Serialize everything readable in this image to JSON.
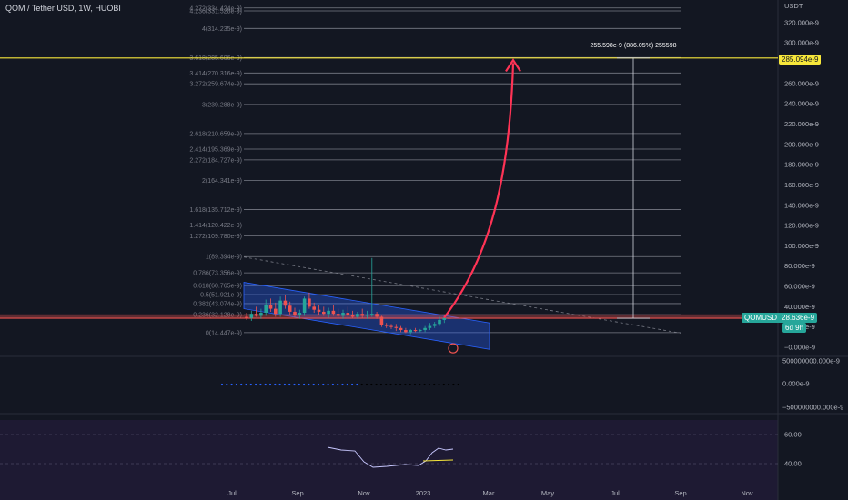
{
  "header": {
    "title": "QOM / Tether USD, 1W, HUOBI"
  },
  "price_axis": {
    "unit": "USDT",
    "ticks": [
      "320.000e-9",
      "300.000e-9",
      "280.000e-9",
      "260.000e-9",
      "240.000e-9",
      "220.000e-9",
      "200.000e-9",
      "180.000e-9",
      "160.000e-9",
      "140.000e-9",
      "120.000e-9",
      "100.000e-9",
      "80.000e-9",
      "60.000e-9",
      "40.000e-9",
      "20.000e-9",
      "−0.000e-9"
    ],
    "current_label": "QOMUSDT",
    "current_value": "28.636e-9",
    "countdown": "6d 9h",
    "target_value": "285.094e-9"
  },
  "time_axis": {
    "labels": [
      "Jul",
      "Sep",
      "Nov",
      "2023",
      "Mar",
      "May",
      "Jul",
      "Sep",
      "Nov"
    ]
  },
  "fib_levels": [
    {
      "label": "4.272(334.424e-9)",
      "value": 334.424
    },
    {
      "label": "4.236(331.528e-9)",
      "value": 331.528
    },
    {
      "label": "4(314.235e-9)",
      "value": 314.235
    },
    {
      "label": "3.618(285.606e-9)",
      "value": 285.606
    },
    {
      "label": "3.414(270.316e-9)",
      "value": 270.316
    },
    {
      "label": "3.272(259.674e-9)",
      "value": 259.674
    },
    {
      "label": "3(239.288e-9)",
      "value": 239.288
    },
    {
      "label": "2.618(210.659e-9)",
      "value": 210.659
    },
    {
      "label": "2.414(195.369e-9)",
      "value": 195.369
    },
    {
      "label": "2.272(184.727e-9)",
      "value": 184.727
    },
    {
      "label": "2(164.341e-9)",
      "value": 164.341
    },
    {
      "label": "1.618(135.712e-9)",
      "value": 135.712
    },
    {
      "label": "1.414(120.422e-9)",
      "value": 120.422
    },
    {
      "label": "1.272(109.780e-9)",
      "value": 109.78
    },
    {
      "label": "1(89.394e-9)",
      "value": 89.394
    },
    {
      "label": "0.786(73.356e-9)",
      "value": 73.356
    },
    {
      "label": "0.618(60.765e-9)",
      "value": 60.765
    },
    {
      "label": "0.5(51.921e-9)",
      "value": 51.921
    },
    {
      "label": "0.382(43.074e-9)",
      "value": 43.074
    },
    {
      "label": "0.236(32.128e-9)",
      "value": 32.128
    },
    {
      "label": "0(14.447e-9)",
      "value": 14.447
    }
  ],
  "measure": {
    "label": "255.598e-9 (886.05%) 255598"
  },
  "indicator1": {
    "ticks": [
      "500000000.000e-9",
      "0.000e-9",
      "−500000000.000e-9"
    ]
  },
  "rsi": {
    "ticks": [
      "60.00",
      "40.00"
    ]
  },
  "colors": {
    "bg": "#131722",
    "grid": "#2a2e39",
    "fib": "#787b86",
    "up": "#26a69a",
    "down": "#ef5350",
    "target": "#f7e73b",
    "arrow": "#ff3355",
    "channel": "#2962ff",
    "current": "#26a69a"
  },
  "chart_data": {
    "type": "candlestick",
    "title": "QOM / Tether USD, 1W, HUOBI",
    "unit": "USDT (e-9)",
    "ylim": [
      0,
      340
    ],
    "current_price": 28.636,
    "target_price": 285.094,
    "candles": [
      {
        "o": 30,
        "h": 34,
        "l": 27,
        "c": 29
      },
      {
        "o": 29,
        "h": 36,
        "l": 26,
        "c": 33
      },
      {
        "o": 33,
        "h": 40,
        "l": 30,
        "c": 31
      },
      {
        "o": 31,
        "h": 38,
        "l": 28,
        "c": 34
      },
      {
        "o": 34,
        "h": 47,
        "l": 31,
        "c": 42
      },
      {
        "o": 42,
        "h": 48,
        "l": 35,
        "c": 38
      },
      {
        "o": 38,
        "h": 44,
        "l": 30,
        "c": 33
      },
      {
        "o": 33,
        "h": 50,
        "l": 30,
        "c": 46
      },
      {
        "o": 46,
        "h": 52,
        "l": 38,
        "c": 41
      },
      {
        "o": 41,
        "h": 45,
        "l": 32,
        "c": 35
      },
      {
        "o": 35,
        "h": 39,
        "l": 30,
        "c": 32
      },
      {
        "o": 32,
        "h": 37,
        "l": 28,
        "c": 34
      },
      {
        "o": 34,
        "h": 50,
        "l": 31,
        "c": 48
      },
      {
        "o": 48,
        "h": 54,
        "l": 38,
        "c": 40
      },
      {
        "o": 40,
        "h": 44,
        "l": 34,
        "c": 37
      },
      {
        "o": 37,
        "h": 42,
        "l": 32,
        "c": 35
      },
      {
        "o": 35,
        "h": 40,
        "l": 31,
        "c": 33
      },
      {
        "o": 33,
        "h": 39,
        "l": 29,
        "c": 36
      },
      {
        "o": 36,
        "h": 42,
        "l": 31,
        "c": 33
      },
      {
        "o": 33,
        "h": 38,
        "l": 29,
        "c": 31
      },
      {
        "o": 31,
        "h": 37,
        "l": 28,
        "c": 34
      },
      {
        "o": 34,
        "h": 40,
        "l": 30,
        "c": 32
      },
      {
        "o": 32,
        "h": 36,
        "l": 29,
        "c": 30
      },
      {
        "o": 30,
        "h": 35,
        "l": 28,
        "c": 33
      },
      {
        "o": 33,
        "h": 38,
        "l": 29,
        "c": 31
      },
      {
        "o": 31,
        "h": 36,
        "l": 28,
        "c": 32
      },
      {
        "o": 32,
        "h": 88,
        "l": 30,
        "c": 33
      },
      {
        "o": 33,
        "h": 35,
        "l": 28,
        "c": 30
      },
      {
        "o": 30,
        "h": 31,
        "l": 20,
        "c": 22
      },
      {
        "o": 22,
        "h": 24,
        "l": 19,
        "c": 21
      },
      {
        "o": 21,
        "h": 23,
        "l": 18,
        "c": 20
      },
      {
        "o": 20,
        "h": 23,
        "l": 16,
        "c": 19
      },
      {
        "o": 19,
        "h": 21,
        "l": 15,
        "c": 17
      },
      {
        "o": 17,
        "h": 19,
        "l": 14,
        "c": 15
      },
      {
        "o": 15,
        "h": 18,
        "l": 13,
        "c": 17
      },
      {
        "o": 17,
        "h": 19,
        "l": 15,
        "c": 16
      },
      {
        "o": 16,
        "h": 18,
        "l": 15,
        "c": 17
      },
      {
        "o": 17,
        "h": 21,
        "l": 15,
        "c": 19
      },
      {
        "o": 19,
        "h": 24,
        "l": 17,
        "c": 21
      },
      {
        "o": 21,
        "h": 25,
        "l": 19,
        "c": 23
      },
      {
        "o": 23,
        "h": 30,
        "l": 21,
        "c": 27
      },
      {
        "o": 27,
        "h": 31,
        "l": 24,
        "c": 29
      },
      {
        "o": 29,
        "h": 32,
        "l": 26,
        "c": 28.636
      }
    ]
  }
}
